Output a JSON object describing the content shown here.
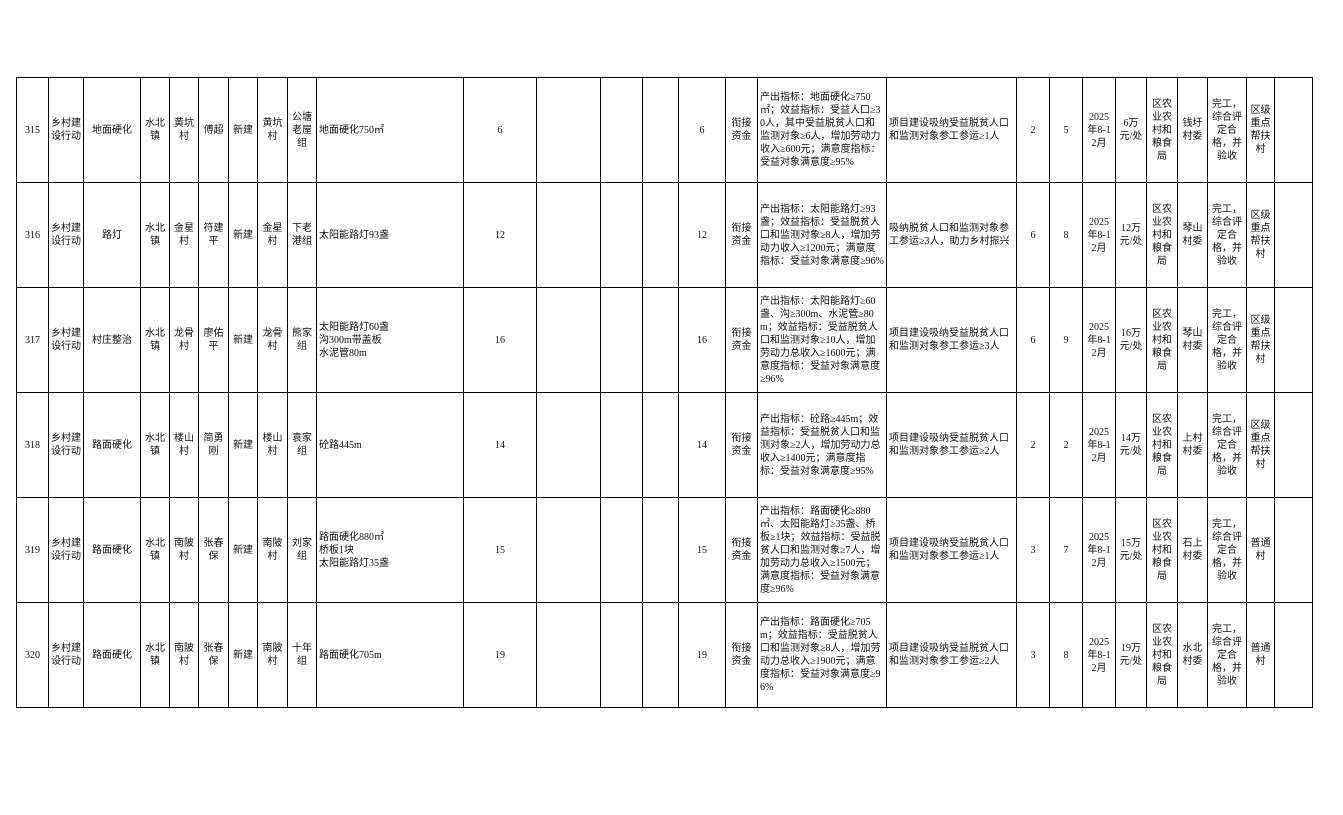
{
  "table": {
    "rows": [
      [
        "315",
        "乡村建设行动",
        "地面硬化",
        "水北镇",
        "黄坑村",
        "傅超",
        "新建",
        "黄坑村",
        "公塘老屋组",
        "地面硬化750㎡",
        "6",
        "",
        "",
        "",
        "6",
        "衔接资金",
        "产出指标：地面硬化≥750㎡；效益指标：受益人口≥30人，其中受益脱贫人口和监测对象≥6人，增加劳动力收入≥600元；满意度指标：受益对象满意度≥95%",
        "项目建设吸纳受益脱贫人口和监测对象参工参运≥1人",
        "2",
        "5",
        "2025年8-12月",
        "6万元/处",
        "区农业农村和粮食局",
        "钱圩村委",
        "完工，综合评定合格，并验收",
        "区级重点帮扶村",
        ""
      ],
      [
        "316",
        "乡村建设行动",
        "路灯",
        "水北镇",
        "金星村",
        "符建平",
        "新建",
        "金星村",
        "下老港组",
        "太阳能路灯93盏",
        "12",
        "",
        "",
        "",
        "12",
        "衔接资金",
        "产出指标：太阳能路灯≥93盏；效益指标：受益脱贫人口和监测对象≥8人，增加劳动力收入≥1200元；满意度指标：受益对象满意度≥96%",
        "吸纳脱贫人口和监测对象参工参运≥3人，助力乡村振兴",
        "6",
        "8",
        "2025年8-12月",
        "12万元/处",
        "区农业农村和粮食局",
        "琴山村委",
        "完工，综合评定合格，并验收",
        "区级重点帮扶村",
        ""
      ],
      [
        "317",
        "乡村建设行动",
        "村庄整治",
        "水北镇",
        "龙骨村",
        "廖佑平",
        "新建",
        "龙骨村",
        "熊家组",
        "太阳能路灯60盏\n沟300m带盖板\n水泥管80m",
        "16",
        "",
        "",
        "",
        "16",
        "衔接资金",
        "产出指标：太阳能路灯≥60盏、沟≥300m、水泥管≥80m；效益指标：受益脱贫人口和监测对象≥10人，增加劳动力总收入≥1600元；满意度指标：受益对象满意度≥96%",
        "项目建设吸纳受益脱贫人口和监测对象参工参运≥3人",
        "6",
        "9",
        "2025年8-12月",
        "16万元/处",
        "区农业农村和粮食局",
        "琴山村委",
        "完工，综合评定合格，并验收",
        "区级重点帮扶村",
        ""
      ],
      [
        "318",
        "乡村建设行动",
        "路面硬化",
        "水北镇",
        "楼山村",
        "简勇刚",
        "新建",
        "楼山村",
        "袁家组",
        "砼路445m",
        "14",
        "",
        "",
        "",
        "14",
        "衔接资金",
        "产出指标：砼路≥445m；效益指标：受益脱贫人口和监测对象≥2人，增加劳动力总收入≥1400元；满意度指标：受益对象满意度≥95%",
        "项目建设吸纳受益脱贫人口和监测对象参工参运≥2人",
        "2",
        "2",
        "2025年8-12月",
        "14万元/处",
        "区农业农村和粮食局",
        "上村村委",
        "完工，综合评定合格，并验收",
        "区级重点帮扶村",
        ""
      ],
      [
        "319",
        "乡村建设行动",
        "路面硬化",
        "水北镇",
        "南陂村",
        "张春保",
        "新建",
        "南陂村",
        "刘家组",
        "路面硬化880㎡\n桥板1块\n太阳能路灯35盏",
        "15",
        "",
        "",
        "",
        "15",
        "衔接资金",
        "产出指标：路面硬化≥880㎡、太阳能路灯≥35盏、桥板≥1块；效益指标：受益脱贫人口和监测对象≥7人，增加劳动力总收入≥1500元；满意度指标：受益对象满意度≥96%",
        "项目建设吸纳受益脱贫人口和监测对象参工参运≥1人",
        "3",
        "7",
        "2025年8-12月",
        "15万元/处",
        "区农业农村和粮食局",
        "石上村委",
        "完工，综合评定合格，并验收",
        "普通村",
        ""
      ],
      [
        "320",
        "乡村建设行动",
        "路面硬化",
        "水北镇",
        "南陂村",
        "张春保",
        "新建",
        "南陂村",
        "十年组",
        "路面硬化705m",
        "19",
        "",
        "",
        "",
        "19",
        "衔接资金",
        "产出指标：路面硬化≥705m；效益指标：受益脱贫人口和监测对象≥8人，增加劳动力总收入≥1900元；满意度指标：受益对象满意度≥96%",
        "项目建设吸纳受益脱贫人口和监测对象参工参运≥2人",
        "3",
        "8",
        "2025年8-12月",
        "19万元/处",
        "区农业农村和粮食局",
        "水北村委",
        "完工，综合评定合格，并验收",
        "普通村",
        ""
      ]
    ]
  }
}
